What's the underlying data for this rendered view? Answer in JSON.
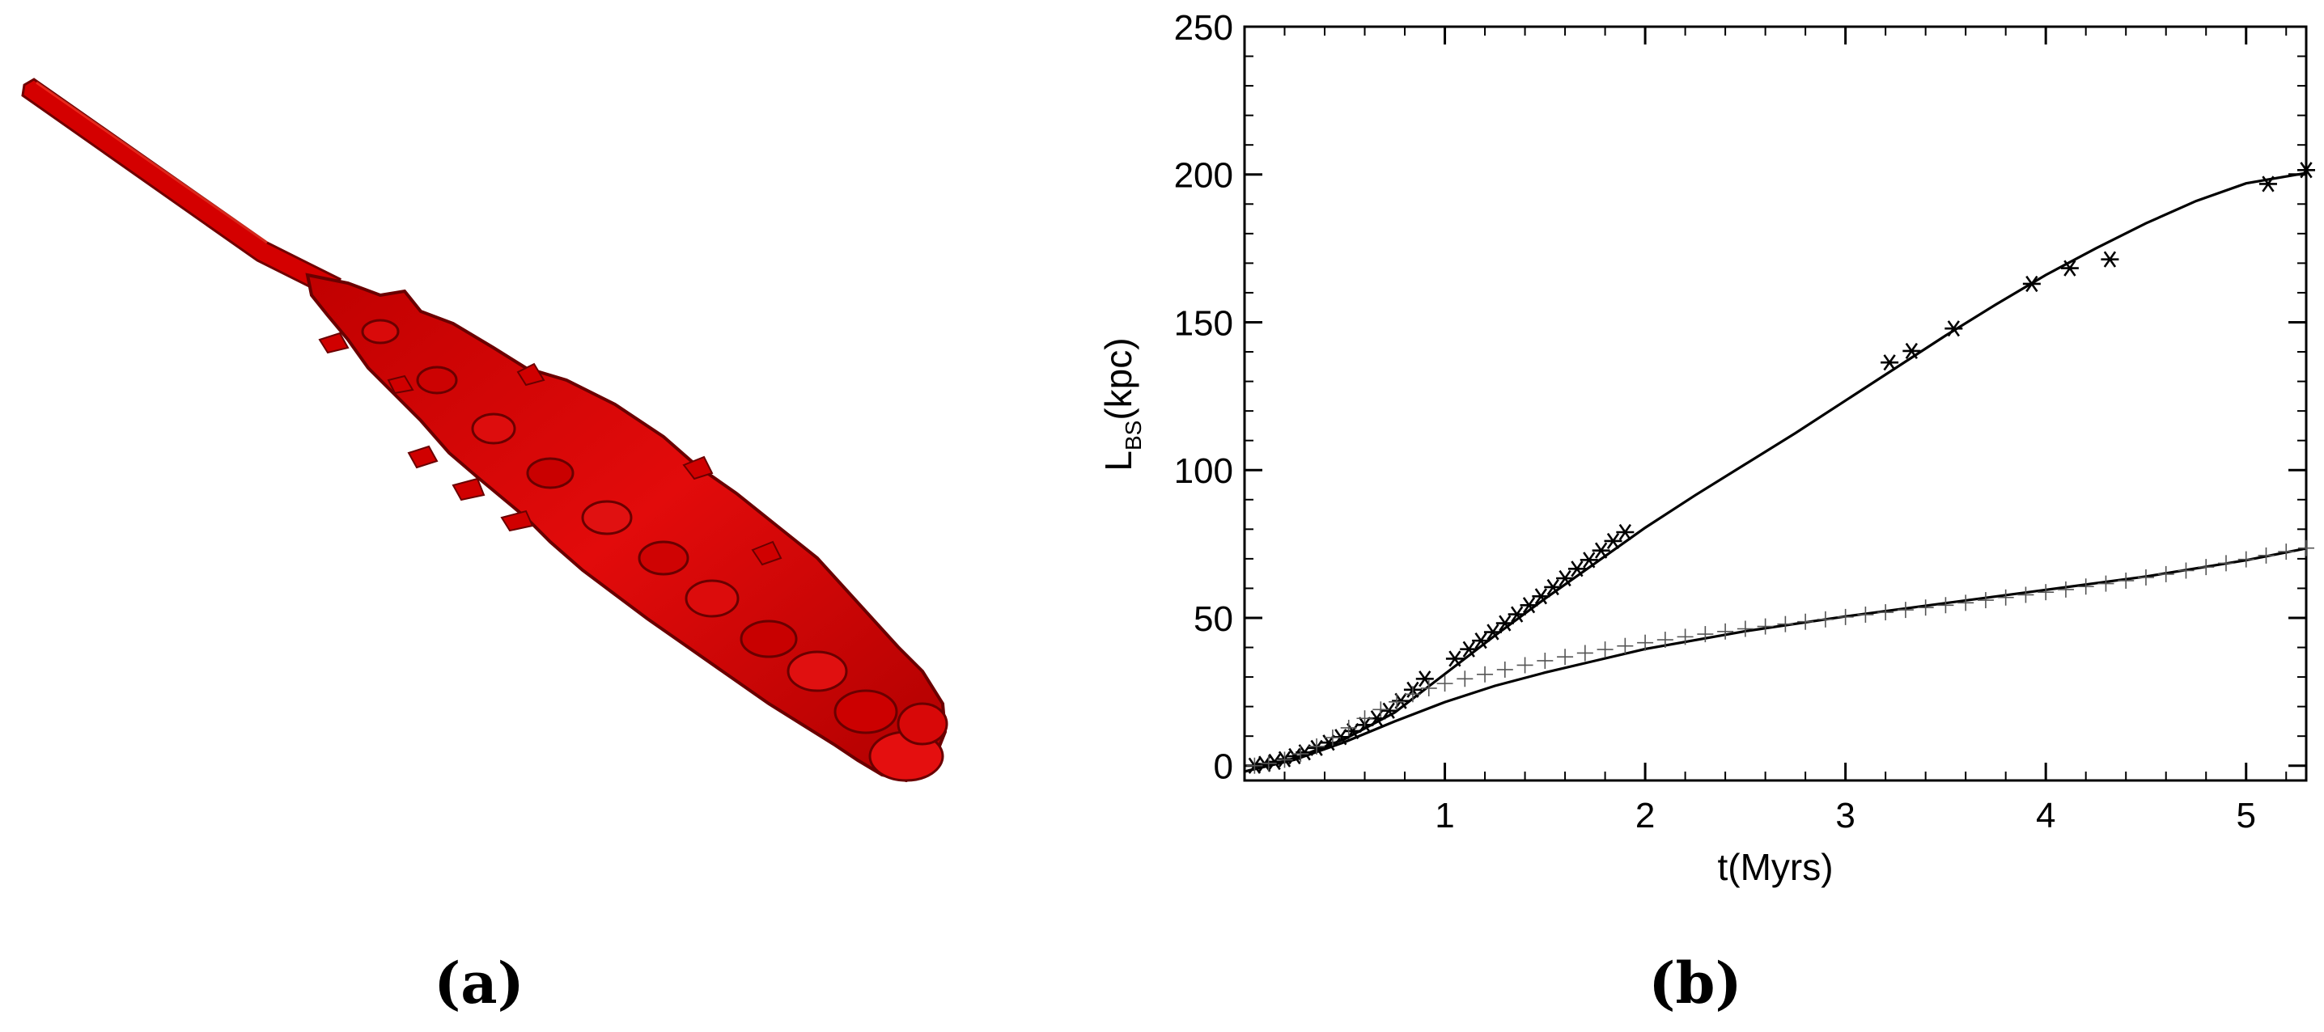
{
  "panels": {
    "a": {
      "label": "(a)"
    },
    "b": {
      "label": "(b)"
    }
  },
  "colors": {
    "jet": "#e00000",
    "jet_dark": "#8a0000",
    "jet_light": "#ff2a1a",
    "ink": "#000000"
  },
  "chart_data": {
    "type": "line",
    "title": "",
    "xlabel": "t(Myrs)",
    "ylabel_main": "L",
    "ylabel_sub": "BS",
    "ylabel_unit": "(kpc)",
    "xlim": [
      0.0,
      5.3
    ],
    "ylim": [
      -5,
      250
    ],
    "xticks": [
      1,
      2,
      3,
      4,
      5
    ],
    "yticks": [
      0,
      50,
      100,
      150,
      200,
      250
    ],
    "grid": false,
    "series": [
      {
        "marker": "asterisk",
        "points": [
          [
            0.05,
            0.0
          ],
          [
            0.1,
            0.6
          ],
          [
            0.15,
            1.3
          ],
          [
            0.2,
            2.2
          ],
          [
            0.25,
            3.2
          ],
          [
            0.3,
            4.5
          ],
          [
            0.36,
            6.0
          ],
          [
            0.42,
            7.8
          ],
          [
            0.48,
            9.7
          ],
          [
            0.54,
            11.7
          ],
          [
            0.6,
            13.8
          ],
          [
            0.66,
            16.0
          ],
          [
            0.72,
            18.6
          ],
          [
            0.78,
            21.9
          ],
          [
            0.84,
            25.7
          ],
          [
            0.9,
            29.4
          ],
          [
            1.05,
            36.2
          ],
          [
            1.12,
            39.4
          ],
          [
            1.18,
            42.3
          ],
          [
            1.24,
            45.2
          ],
          [
            1.3,
            48.2
          ],
          [
            1.36,
            51.2
          ],
          [
            1.42,
            54.3
          ],
          [
            1.48,
            57.3
          ],
          [
            1.54,
            60.4
          ],
          [
            1.6,
            63.4
          ],
          [
            1.66,
            66.6
          ],
          [
            1.72,
            69.6
          ],
          [
            1.78,
            72.8
          ],
          [
            1.84,
            76.0
          ],
          [
            1.9,
            79.0
          ],
          [
            3.22,
            136.4
          ],
          [
            3.33,
            140.3
          ],
          [
            3.54,
            147.9
          ],
          [
            3.93,
            163.0
          ],
          [
            4.12,
            168.3
          ],
          [
            4.32,
            171.3
          ],
          [
            5.11,
            196.8
          ],
          [
            5.3,
            201.5
          ]
        ],
        "fit": [
          [
            0.0,
            -2.0
          ],
          [
            0.25,
            2.5
          ],
          [
            0.5,
            9.0
          ],
          [
            0.75,
            18.0
          ],
          [
            1.0,
            31.0
          ],
          [
            1.25,
            44.0
          ],
          [
            1.5,
            56.5
          ],
          [
            1.75,
            68.5
          ],
          [
            2.0,
            80.5
          ],
          [
            2.25,
            91.5
          ],
          [
            2.5,
            102.0
          ],
          [
            2.75,
            112.5
          ],
          [
            3.0,
            123.5
          ],
          [
            3.25,
            134.5
          ],
          [
            3.5,
            145.5
          ],
          [
            3.75,
            156.0
          ],
          [
            4.0,
            166.0
          ],
          [
            4.25,
            175.0
          ],
          [
            4.5,
            183.5
          ],
          [
            4.75,
            191.0
          ],
          [
            5.0,
            197.0
          ],
          [
            5.3,
            200.5
          ]
        ]
      },
      {
        "marker": "plus",
        "points": [
          [
            0.05,
            0.0
          ],
          [
            0.12,
            0.8
          ],
          [
            0.2,
            2.0
          ],
          [
            0.28,
            4.0
          ],
          [
            0.36,
            6.5
          ],
          [
            0.44,
            9.5
          ],
          [
            0.52,
            12.8
          ],
          [
            0.6,
            16.0
          ],
          [
            0.68,
            19.0
          ],
          [
            0.76,
            21.6
          ],
          [
            0.84,
            24.2
          ],
          [
            0.92,
            26.2
          ],
          [
            1.0,
            27.8
          ],
          [
            1.1,
            29.4
          ],
          [
            1.2,
            30.9
          ],
          [
            1.3,
            32.5
          ],
          [
            1.4,
            34.0
          ],
          [
            1.5,
            35.5
          ],
          [
            1.6,
            36.8
          ],
          [
            1.7,
            38.1
          ],
          [
            1.8,
            39.3
          ],
          [
            1.9,
            40.5
          ],
          [
            2.0,
            41.6
          ],
          [
            2.1,
            42.6
          ],
          [
            2.2,
            43.6
          ],
          [
            2.3,
            44.5
          ],
          [
            2.4,
            45.4
          ],
          [
            2.5,
            46.3
          ],
          [
            2.6,
            47.1
          ],
          [
            2.7,
            47.9
          ],
          [
            2.8,
            48.7
          ],
          [
            2.9,
            49.5
          ],
          [
            3.0,
            50.3
          ],
          [
            3.1,
            51.1
          ],
          [
            3.2,
            51.9
          ],
          [
            3.3,
            52.7
          ],
          [
            3.4,
            53.5
          ],
          [
            3.5,
            54.3
          ],
          [
            3.6,
            55.1
          ],
          [
            3.7,
            56.0
          ],
          [
            3.8,
            56.9
          ],
          [
            3.9,
            57.8
          ],
          [
            4.0,
            58.7
          ],
          [
            4.1,
            59.6
          ],
          [
            4.2,
            60.6
          ],
          [
            4.3,
            61.6
          ],
          [
            4.4,
            62.6
          ],
          [
            4.5,
            63.7
          ],
          [
            4.6,
            64.8
          ],
          [
            4.7,
            66.0
          ],
          [
            4.8,
            67.2
          ],
          [
            4.9,
            68.5
          ],
          [
            5.0,
            69.8
          ],
          [
            5.1,
            71.1
          ],
          [
            5.2,
            72.4
          ],
          [
            5.3,
            73.6
          ]
        ],
        "fit": [
          [
            0.0,
            -2.0
          ],
          [
            0.25,
            2.0
          ],
          [
            0.5,
            8.0
          ],
          [
            0.75,
            15.0
          ],
          [
            1.0,
            21.5
          ],
          [
            1.25,
            27.0
          ],
          [
            1.5,
            31.5
          ],
          [
            1.75,
            35.5
          ],
          [
            2.0,
            39.5
          ],
          [
            2.5,
            45.5
          ],
          [
            3.0,
            50.5
          ],
          [
            3.5,
            55.0
          ],
          [
            4.0,
            59.5
          ],
          [
            4.5,
            64.0
          ],
          [
            5.0,
            69.5
          ],
          [
            5.3,
            73.5
          ]
        ]
      }
    ]
  }
}
